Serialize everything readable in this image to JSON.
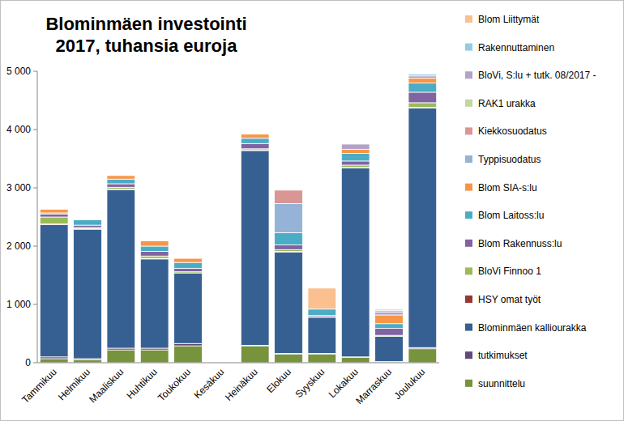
{
  "chart_data": {
    "type": "bar",
    "stacked": true,
    "grid": false,
    "legend": "right",
    "title": "Blominmäen investointi 2017, tuhansia euroja",
    "categories": [
      "Tammikuu",
      "Helmikuu",
      "Maaliskuu",
      "Huhtikuu",
      "Toukokuu",
      "Kesäkuu",
      "Heinäkuu",
      "Elokuu",
      "Syyskuu",
      "Lokakuu",
      "Marraskuu",
      "Joulukuu"
    ],
    "ylim": [
      0,
      5000
    ],
    "yticks": [
      0,
      {
        "value": 1000,
        "label": "1 000"
      },
      {
        "value": 2000,
        "label": "2 000"
      },
      {
        "value": 3000,
        "label": "3 000"
      },
      {
        "value": 4000,
        "label": "4 000"
      },
      {
        "value": 5000,
        "label": "5 000"
      }
    ],
    "series": [
      {
        "name": "suunnittelu",
        "color": "#77933c",
        "values": [
          70,
          50,
          220,
          220,
          290,
          0,
          290,
          150,
          150,
          90,
          10,
          240
        ]
      },
      {
        "name": "tutkimukset",
        "color": "#604a7b",
        "values": [
          30,
          20,
          30,
          30,
          40,
          0,
          10,
          10,
          10,
          10,
          10,
          20
        ]
      },
      {
        "name": "Blominmäen kalliourakka",
        "color": "#376092",
        "values": [
          2270,
          2220,
          2720,
          1530,
          1210,
          0,
          3340,
          1740,
          620,
          3240,
          430,
          4110
        ]
      },
      {
        "name": "HSY omat työt",
        "color": "#953735",
        "values": [
          10,
          10,
          10,
          10,
          0,
          0,
          10,
          10,
          0,
          10,
          0,
          10
        ]
      },
      {
        "name": "BloVi Finnoo 1",
        "color": "#9bbb59",
        "values": [
          120,
          20,
          30,
          40,
          20,
          0,
          20,
          30,
          10,
          40,
          20,
          80
        ]
      },
      {
        "name": "Blom Rakennuss:lu",
        "color": "#8064a2",
        "values": [
          50,
          40,
          60,
          80,
          60,
          0,
          90,
          80,
          20,
          70,
          120,
          180
        ]
      },
      {
        "name": "Blom Laitoss:lu",
        "color": "#4bacc6",
        "values": [
          20,
          90,
          80,
          90,
          100,
          0,
          90,
          210,
          110,
          130,
          80,
          160
        ]
      },
      {
        "name": "Blom SIA-s:lu",
        "color": "#f79646",
        "values": [
          60,
          0,
          60,
          90,
          70,
          0,
          70,
          0,
          0,
          70,
          150,
          80
        ]
      },
      {
        "name": "Typpisuodatus",
        "color": "#95b3d7",
        "values": [
          0,
          0,
          0,
          0,
          0,
          0,
          0,
          500,
          0,
          0,
          0,
          0
        ]
      },
      {
        "name": "Kiekkosuodatus",
        "color": "#d99694",
        "values": [
          0,
          0,
          0,
          0,
          0,
          0,
          0,
          230,
          0,
          0,
          0,
          0
        ]
      },
      {
        "name": "RAK1 urakka",
        "color": "#c3d69b",
        "values": [
          0,
          0,
          0,
          0,
          0,
          0,
          0,
          0,
          0,
          0,
          0,
          0
        ]
      },
      {
        "name": "BloVi, S:lu + tutk. 08/2017 -",
        "color": "#b3a2c7",
        "values": [
          0,
          0,
          0,
          0,
          0,
          0,
          0,
          0,
          0,
          90,
          50,
          40
        ]
      },
      {
        "name": "Rakennuttaminen",
        "color": "#93cddd",
        "values": [
          0,
          0,
          0,
          0,
          0,
          0,
          0,
          0,
          0,
          0,
          30,
          30
        ]
      },
      {
        "name": "Blom Liittymät",
        "color": "#fac090",
        "values": [
          0,
          0,
          0,
          0,
          0,
          0,
          0,
          0,
          360,
          0,
          20,
          0
        ]
      }
    ]
  }
}
